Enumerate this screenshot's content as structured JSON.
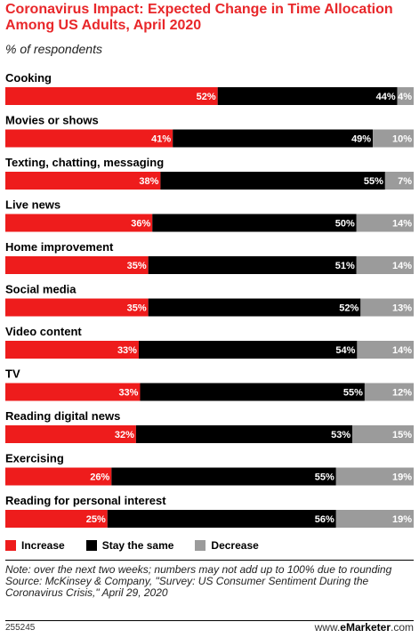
{
  "header": {
    "title": "Coronavirus Impact: Expected Change in Time Allocation Among US Adults, April 2020",
    "subtitle": "% of respondents"
  },
  "chart_data": {
    "type": "bar",
    "orientation": "horizontal",
    "stacked": true,
    "categories": [
      "Cooking",
      "Movies or shows",
      "Texting, chatting, messaging",
      "Live news",
      "Home improvement",
      "Social media",
      "Video content",
      "TV",
      "Reading digital news",
      "Exercising",
      "Reading for personal interest"
    ],
    "series": [
      {
        "name": "Increase",
        "color": "#ee1c1c",
        "values": [
          52,
          41,
          38,
          36,
          35,
          35,
          33,
          33,
          32,
          26,
          25
        ]
      },
      {
        "name": "Stay the same",
        "color": "#000000",
        "values": [
          44,
          49,
          55,
          50,
          51,
          52,
          54,
          55,
          53,
          55,
          56
        ]
      },
      {
        "name": "Decrease",
        "color": "#9b9b9b",
        "values": [
          4,
          10,
          7,
          14,
          14,
          13,
          14,
          12,
          15,
          19,
          19
        ]
      }
    ],
    "unit": "%",
    "legend": "bottom",
    "grid": false
  },
  "legend": {
    "items": [
      {
        "label": "Increase",
        "color": "#ee1c1c"
      },
      {
        "label": "Stay the same",
        "color": "#000000"
      },
      {
        "label": "Decrease",
        "color": "#9b9b9b"
      }
    ]
  },
  "notes": {
    "note": "Note: over the next two weeks; numbers may not add up to 100% due to rounding",
    "source": "Source: McKinsey & Company, \"Survey: US Consumer Sentiment During the Coronavirus Crisis,\" April 29, 2020"
  },
  "footer": {
    "id": "255245",
    "brand_prefix": "www.",
    "brand_name": "eMarketer",
    "brand_suffix": ".com"
  }
}
